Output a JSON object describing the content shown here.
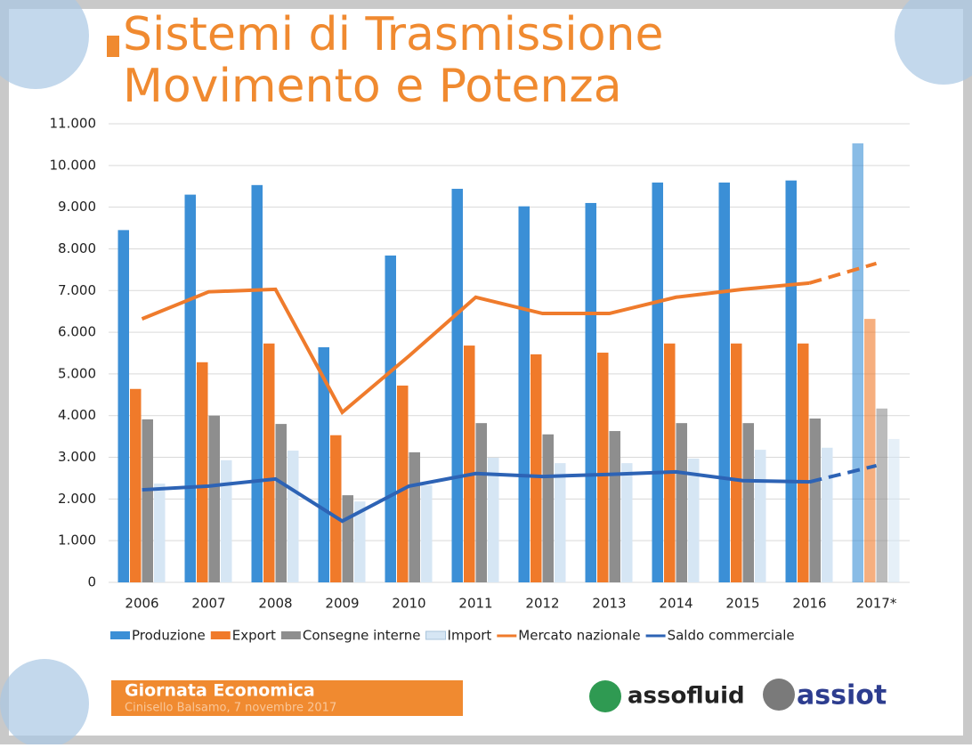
{
  "slide": {
    "title_lines": [
      "Sistemi di Trasmissione",
      "Movimento e Potenza"
    ],
    "footer_title": "Giornata Economica",
    "footer_subtitle": "Cinisello Balsamo, 7 novembre 2017",
    "logos": [
      "assofluid",
      "assiot"
    ]
  },
  "chart_data": {
    "type": "bar",
    "categories": [
      "2006",
      "2007",
      "2008",
      "2009",
      "2010",
      "2011",
      "2012",
      "2013",
      "2014",
      "2015",
      "2016",
      "2017*"
    ],
    "series": [
      {
        "name": "Produzione",
        "type": "bar",
        "color": "#3b8fd6",
        "values": [
          8450,
          9300,
          9530,
          5640,
          7840,
          9440,
          9020,
          9100,
          9590,
          9590,
          9640,
          10530
        ]
      },
      {
        "name": "Export",
        "type": "bar",
        "color": "#f07a2a",
        "values": [
          4640,
          5280,
          5730,
          3530,
          4720,
          5680,
          5470,
          5510,
          5730,
          5730,
          5730,
          6320
        ]
      },
      {
        "name": "Consegne interne",
        "type": "bar",
        "color": "#8e8e8e",
        "values": [
          3910,
          4000,
          3800,
          2090,
          3120,
          3820,
          3550,
          3630,
          3820,
          3820,
          3930,
          4170
        ]
      },
      {
        "name": "Import",
        "type": "bar",
        "color": "#d6e6f4",
        "values": [
          2370,
          2930,
          3160,
          1940,
          2330,
          2990,
          2860,
          2860,
          2970,
          3180,
          3230,
          3440
        ]
      },
      {
        "name": "Mercato nazionale",
        "type": "line",
        "color": "#ef7b2c",
        "values": [
          6320,
          6970,
          7030,
          4080,
          5430,
          6840,
          6450,
          6450,
          6840,
          7030,
          7180,
          7650
        ]
      },
      {
        "name": "Saldo commerciale",
        "type": "line",
        "color": "#2d63b5",
        "values": [
          2220,
          2310,
          2480,
          1470,
          2310,
          2610,
          2540,
          2590,
          2650,
          2440,
          2410,
          2800
        ]
      }
    ],
    "last_segment_style": "dashed",
    "ylim": [
      0,
      11000
    ],
    "yticks": [
      0,
      {
        "value": 1000,
        "label": "1.000"
      },
      {
        "value": 2000,
        "label": "2.000"
      },
      {
        "value": 3000,
        "label": "3.000"
      },
      {
        "value": 4000,
        "label": "4.000"
      },
      {
        "value": 5000,
        "label": "5.000"
      },
      {
        "value": 6000,
        "label": "6.000"
      },
      {
        "value": 7000,
        "label": "7.000"
      },
      {
        "value": 8000,
        "label": "8.000"
      },
      {
        "value": 9000,
        "label": "9.000"
      },
      {
        "value": 10000,
        "label": "10.000"
      },
      {
        "value": 11000,
        "label": "11.000"
      }
    ],
    "grid": true,
    "legend": "bottom"
  }
}
